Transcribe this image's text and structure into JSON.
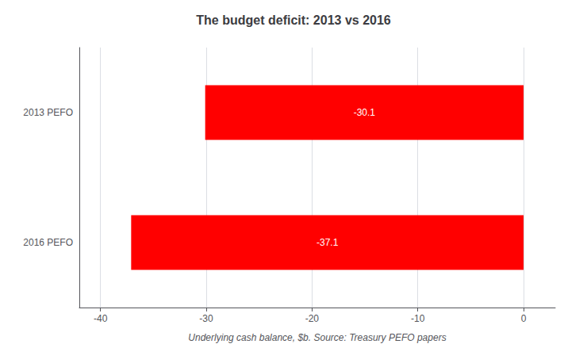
{
  "chart_data": {
    "type": "bar",
    "orientation": "horizontal",
    "title": "The budget deficit: 2013 vs 2016",
    "categories": [
      "2016 PEFO",
      "2013 PEFO"
    ],
    "values": [
      -37.1,
      -30.1
    ],
    "color": "#ff0000",
    "xlabel": "Underlying cash balance, $b. Source: Treasury PEFO papers",
    "xlim": [
      -42,
      3
    ],
    "xticks": [
      -40,
      -30,
      -20,
      -10,
      0
    ],
    "grid": true,
    "data_labels": true
  }
}
